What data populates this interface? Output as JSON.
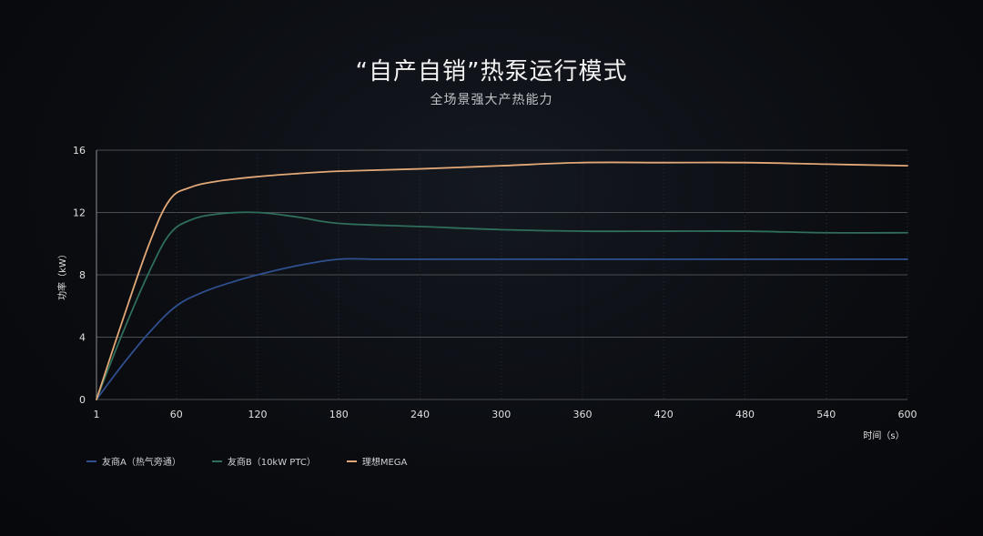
{
  "header": {
    "title": "“自产自销”热泵运行模式",
    "subtitle": "全场景强大产热能力"
  },
  "colors": {
    "background": "#0a0c10",
    "grid": "#4a4d52",
    "axis_text": "#e0e0e0",
    "series_a": "#2f4f8f",
    "series_b": "#2f6e5a",
    "series_c": "#e2a877"
  },
  "chart_data": {
    "type": "line",
    "title": "",
    "xlabel": "时间（s）",
    "ylabel": "功率（kW）",
    "xlim": [
      1,
      600
    ],
    "ylim": [
      0,
      16
    ],
    "x_ticks": [
      1,
      60,
      120,
      180,
      240,
      300,
      360,
      420,
      480,
      540,
      600
    ],
    "y_ticks": [
      0,
      4,
      8,
      12,
      16
    ],
    "grid": "horizontal",
    "legend_position": "bottom-left",
    "series": [
      {
        "name": "友商A（热气旁通）",
        "color": "#2f4f8f",
        "points": [
          [
            1,
            0
          ],
          [
            20,
            2.2
          ],
          [
            40,
            4.3
          ],
          [
            60,
            6.0
          ],
          [
            80,
            6.9
          ],
          [
            100,
            7.5
          ],
          [
            120,
            8.0
          ],
          [
            150,
            8.6
          ],
          [
            180,
            9.0
          ],
          [
            210,
            9.0
          ],
          [
            240,
            9.0
          ],
          [
            300,
            9.0
          ],
          [
            360,
            9.0
          ],
          [
            420,
            9.0
          ],
          [
            480,
            9.0
          ],
          [
            540,
            9.0
          ],
          [
            600,
            9.0
          ]
        ]
      },
      {
        "name": "友商B（10kW PTC）",
        "color": "#2f6e5a",
        "points": [
          [
            1,
            0
          ],
          [
            20,
            4.2
          ],
          [
            40,
            8.2
          ],
          [
            55,
            10.6
          ],
          [
            70,
            11.5
          ],
          [
            90,
            11.9
          ],
          [
            120,
            12.0
          ],
          [
            150,
            11.7
          ],
          [
            180,
            11.3
          ],
          [
            240,
            11.1
          ],
          [
            300,
            10.9
          ],
          [
            360,
            10.8
          ],
          [
            420,
            10.8
          ],
          [
            480,
            10.8
          ],
          [
            540,
            10.7
          ],
          [
            600,
            10.7
          ]
        ]
      },
      {
        "name": "理想MEGA",
        "color": "#e2a877",
        "points": [
          [
            1,
            0
          ],
          [
            20,
            5.0
          ],
          [
            40,
            10.0
          ],
          [
            55,
            12.8
          ],
          [
            70,
            13.6
          ],
          [
            90,
            14.0
          ],
          [
            120,
            14.3
          ],
          [
            150,
            14.5
          ],
          [
            180,
            14.65
          ],
          [
            240,
            14.8
          ],
          [
            300,
            15.0
          ],
          [
            360,
            15.2
          ],
          [
            420,
            15.2
          ],
          [
            480,
            15.2
          ],
          [
            540,
            15.1
          ],
          [
            600,
            15.0
          ]
        ]
      }
    ]
  }
}
